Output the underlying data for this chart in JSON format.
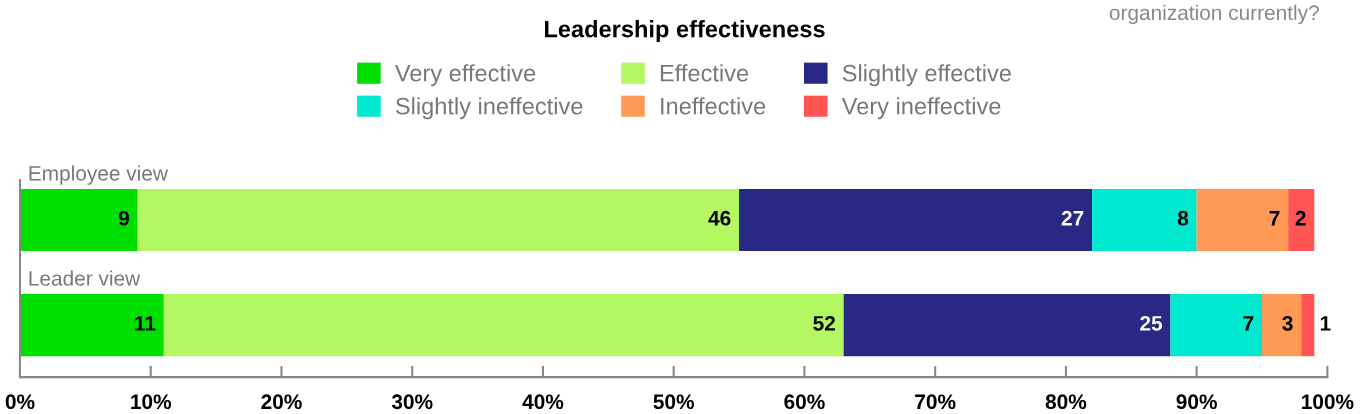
{
  "chart_data": {
    "type": "bar",
    "orientation": "horizontal",
    "stacked": true,
    "title": "Leadership effectiveness",
    "categories": [
      "Employee view",
      "Leader view"
    ],
    "series": [
      {
        "name": "Very effective",
        "color": "#00e000",
        "values": [
          9,
          11
        ]
      },
      {
        "name": "Effective",
        "color": "#b3f862",
        "values": [
          46,
          52
        ]
      },
      {
        "name": "Slightly effective",
        "color": "#282885",
        "values": [
          27,
          25
        ]
      },
      {
        "name": "Slightly ineffective",
        "color": "#00e8d0",
        "values": [
          8,
          7
        ]
      },
      {
        "name": "Ineffective",
        "color": "#fe9a55",
        "values": [
          7,
          3
        ]
      },
      {
        "name": "Very ineffective",
        "color": "#ff5555",
        "values": [
          2,
          1
        ]
      }
    ],
    "xlim": [
      0,
      100
    ],
    "xticks": [
      {
        "value": 0,
        "label": "0%"
      },
      {
        "value": 10,
        "label": "10%"
      },
      {
        "value": 20,
        "label": "20%"
      },
      {
        "value": 30,
        "label": "30%"
      },
      {
        "value": 40,
        "label": "40%"
      },
      {
        "value": 50,
        "label": "50%"
      },
      {
        "value": 60,
        "label": "60%"
      },
      {
        "value": 70,
        "label": "70%"
      },
      {
        "value": 80,
        "label": "80%"
      },
      {
        "value": 90,
        "label": "90%"
      },
      {
        "value": 100,
        "label": "100%"
      }
    ],
    "data_labels": true,
    "legend": "top",
    "grid": false,
    "annotations": [
      "organization currently?"
    ]
  }
}
